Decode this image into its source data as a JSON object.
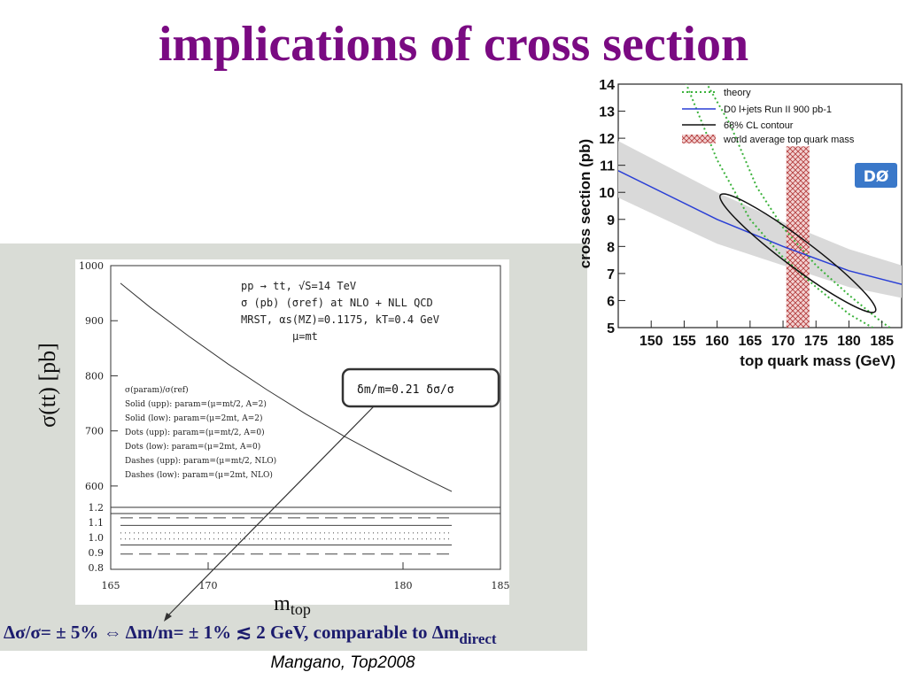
{
  "slide": {
    "title": "implications of cross section",
    "credit": "Mangano, Top2008",
    "footer_text": "Δσ/σ= ± 5% ⇔ Δm/m= ± 1% ≲ 2 GeV, comparable to Δm",
    "footer_subscript": "direct",
    "colors": {
      "title": "#7a0a82",
      "footer": "#1c1c6e",
      "panel_bg": "#d9dcd6"
    }
  },
  "chart_data": [
    {
      "type": "line",
      "xlabel": "m",
      "xlabel_subscript": "top",
      "ylabel": "σ(tt) [pb]",
      "xlim": [
        165,
        185
      ],
      "ylim": [
        550,
        1000
      ],
      "xticks": [
        "165",
        "170",
        "180",
        "185"
      ],
      "yticks": [
        "600",
        "700",
        "800",
        "900",
        "1000"
      ],
      "info_lines": [
        "pp → tt, √S=14 TeV",
        "σ (pb) (σref) at NLO + NLL QCD",
        "MRST, αs(MZ)=0.1175, kT=0.4 GeV",
        "μ=mt"
      ],
      "legend_lines": [
        "σ(param)/σ(ref)",
        "Solid (upp): param=(μ=mt/2, A=2)",
        "Solid (low): param=(μ=2mt, A=2)",
        "Dots (upp): param=(μ=mt/2, A=0)",
        "Dots (low): param=(μ=2mt, A=0)",
        "Dashes (upp): param=(μ=mt/2, NLO)",
        "Dashes (low): param=(μ=2mt, NLO)"
      ],
      "annotation": "δm/m=0.21  δσ/σ",
      "series": [
        {
          "x": [
            165.5,
            167.0,
            169.0,
            171.0,
            173.0,
            175.0,
            177.0,
            179.0,
            181.0,
            182.5
          ],
          "y": [
            968,
            925,
            872,
            822,
            775,
            731,
            690,
            652,
            616,
            590
          ]
        }
      ],
      "ratio_panel": {
        "ylim": [
          0.8,
          1.2
        ],
        "yticks": [
          "0.8",
          "0.9",
          "1.0",
          "1.1",
          "1.2"
        ],
        "lines": [
          {
            "style": "dashes",
            "y": 1.13
          },
          {
            "style": "solid",
            "y": 1.08
          },
          {
            "style": "dots",
            "y": 1.03
          },
          {
            "style": "dots",
            "y": 0.99
          },
          {
            "style": "solid",
            "y": 0.95
          },
          {
            "style": "dashes",
            "y": 0.89
          }
        ]
      }
    },
    {
      "type": "line",
      "ylabel": "cross section (pb)",
      "xlabel": "top quark mass (GeV)",
      "xlim": [
        145,
        188
      ],
      "ylim": [
        5,
        14
      ],
      "xticks": [
        "150",
        "155",
        "160",
        "165",
        "170",
        "175",
        "180",
        "185"
      ],
      "yticks": [
        "5",
        "6",
        "7",
        "8",
        "9",
        "10",
        "11",
        "12",
        "13",
        "14"
      ],
      "legend": [
        "theory",
        "D0 l+jets Run II 900 pb-1",
        "68% CL contour",
        "world average top quark mass"
      ],
      "logo": "DØ",
      "measurement_band": {
        "x": [
          145,
          160,
          170,
          180,
          188
        ],
        "center": [
          10.8,
          9.0,
          8.0,
          7.1,
          6.6
        ],
        "low": [
          9.8,
          8.1,
          7.3,
          6.5,
          6.1
        ],
        "high": [
          11.9,
          10.0,
          8.9,
          7.9,
          7.3
        ]
      },
      "theory_curves": [
        {
          "x": [
            145,
            155,
            160,
            165,
            170,
            175,
            180,
            185,
            188
          ],
          "y": [
            14.5,
            14.2,
            11.2,
            9.0,
            7.6,
            6.5,
            5.5,
            4.8,
            4.4
          ]
        },
        {
          "x": [
            150,
            158,
            162,
            166,
            170,
            175,
            180,
            185,
            188
          ],
          "y": [
            14.5,
            14.2,
            12.5,
            10.2,
            8.7,
            7.3,
            6.2,
            5.2,
            4.7
          ]
        }
      ],
      "contour": {
        "center_x": 172.0,
        "center_y": 7.6,
        "endpoints": [
          [
            160.5,
            9.9
          ],
          [
            184.0,
            5.6
          ]
        ]
      },
      "world_average_band": [
        170.5,
        174.0
      ]
    }
  ]
}
